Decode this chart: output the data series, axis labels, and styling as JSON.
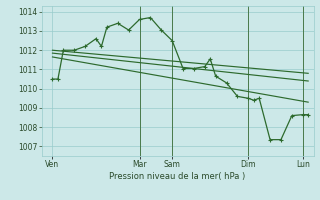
{
  "bg_color": "#cce8e8",
  "grid_color": "#99cccc",
  "line_color": "#2d6a2d",
  "vline_color": "#4a7a4a",
  "title": "Pression niveau de la mer( hPa )",
  "ylim": [
    1006.5,
    1014.3
  ],
  "yticks": [
    1007,
    1008,
    1009,
    1010,
    1011,
    1012,
    1013,
    1014
  ],
  "x_tick_labels": [
    "Ven",
    "Mar",
    "Sam",
    "Dim",
    "Lun"
  ],
  "x_tick_positions": [
    1,
    9,
    12,
    19,
    24
  ],
  "xlim": [
    0,
    25
  ],
  "series1_x": [
    1,
    1.5,
    2,
    3,
    4,
    5,
    5.5,
    6,
    7,
    8,
    9,
    10,
    11,
    12,
    13,
    14,
    15,
    15.5,
    16,
    17,
    18,
    19,
    19.5,
    20,
    21,
    22,
    23,
    24,
    24.5
  ],
  "series1_y": [
    1010.5,
    1010.5,
    1012.0,
    1012.0,
    1012.2,
    1012.6,
    1012.2,
    1013.2,
    1013.4,
    1013.05,
    1013.6,
    1013.7,
    1013.05,
    1012.5,
    1011.05,
    1011.05,
    1011.15,
    1011.55,
    1010.65,
    1010.3,
    1009.6,
    1009.5,
    1009.4,
    1009.5,
    1007.35,
    1007.35,
    1008.6,
    1008.65,
    1008.65
  ],
  "trend_lines": [
    {
      "x": [
        1,
        24.5
      ],
      "y": [
        1012.0,
        1010.8
      ]
    },
    {
      "x": [
        1,
        24.5
      ],
      "y": [
        1011.85,
        1010.4
      ]
    },
    {
      "x": [
        1,
        24.5
      ],
      "y": [
        1011.65,
        1009.3
      ]
    }
  ],
  "vlines": [
    9,
    12,
    19,
    24
  ]
}
